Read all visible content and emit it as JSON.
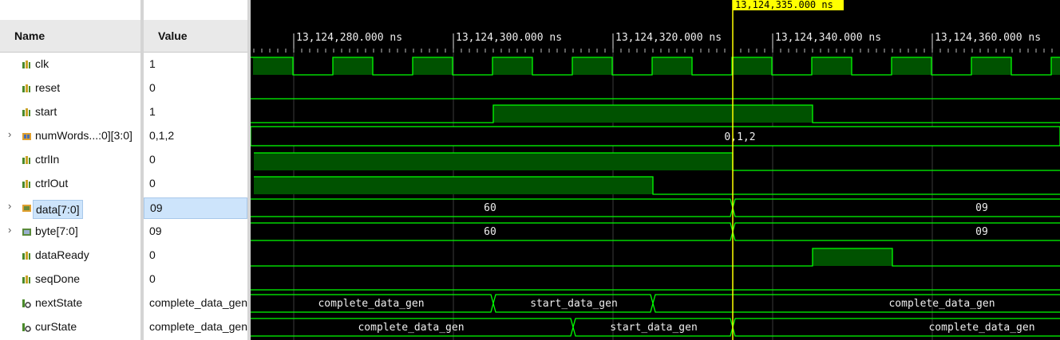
{
  "columns": {
    "name": "Name",
    "value": "Value"
  },
  "cursor": {
    "time_label": "13,124,335.000 ns"
  },
  "time_ruler": [
    "13,124,280.000 ns",
    "13,124,300.000 ns",
    "13,124,320.000 ns",
    "13,124,340.000 ns",
    "13,124,360.000 ns"
  ],
  "signals": [
    {
      "name": "clk",
      "value": "1",
      "icon": "bit-signal-icon",
      "expandable": false
    },
    {
      "name": "reset",
      "value": "0",
      "icon": "bit-signal-icon",
      "expandable": false
    },
    {
      "name": "start",
      "value": "1",
      "icon": "bit-signal-icon",
      "expandable": false
    },
    {
      "name": "numWords...:0][3:0]",
      "value": "0,1,2",
      "icon": "array-signal-icon",
      "expandable": true
    },
    {
      "name": "ctrlIn",
      "value": "0",
      "icon": "bit-signal-icon",
      "expandable": false
    },
    {
      "name": "ctrlOut",
      "value": "0",
      "icon": "bit-signal-icon",
      "expandable": false
    },
    {
      "name": "data[7:0]",
      "value": "09",
      "icon": "bus-signal-icon",
      "expandable": true,
      "selected": true
    },
    {
      "name": "byte[7:0]",
      "value": "09",
      "icon": "bus-signal-icon",
      "expandable": true
    },
    {
      "name": "dataReady",
      "value": "0",
      "icon": "bit-signal-icon",
      "expandable": false
    },
    {
      "name": "seqDone",
      "value": "0",
      "icon": "bit-signal-icon",
      "expandable": false
    },
    {
      "name": "nextState",
      "value": "complete_data_gen",
      "icon": "enum-signal-icon",
      "expandable": false
    },
    {
      "name": "curState",
      "value": "complete_data_gen",
      "icon": "enum-signal-icon",
      "expandable": false
    }
  ],
  "bus_labels": {
    "numWords": "0,1,2",
    "data": [
      "60",
      "09"
    ],
    "byte": [
      "60",
      "09"
    ],
    "nextState": [
      "complete_data_gen",
      "start_data_gen",
      "complete_data_gen"
    ],
    "curState": [
      "complete_data_gen",
      "start_data_gen",
      "complete_data_gen"
    ]
  },
  "colors": {
    "wave": "#00ff00",
    "wave_fill": "#005200",
    "cursor": "#ffff00",
    "grid": "#3a3a3a",
    "selection": "#cde4fb"
  }
}
